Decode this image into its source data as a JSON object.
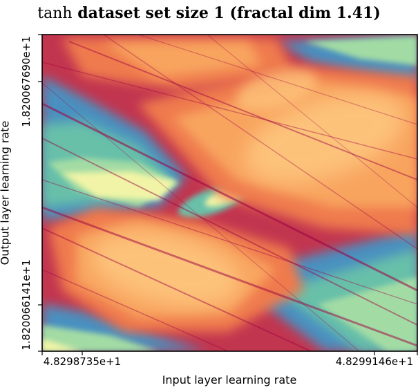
{
  "chart_data": {
    "type": "heatmap",
    "title_fn": "tanh",
    "title_rest": " dataset set size 1 (fractal dim 1.41)",
    "xlabel": "Input layer learning rate",
    "ylabel": "Output layer learning rate",
    "x_ticks": [
      "4.8298735e+1",
      "4.8299146e+1"
    ],
    "y_ticks": [
      "1.820067690e+1",
      "1.820066141e+1"
    ],
    "colormap": "Spectral",
    "colormap_stops": [
      "#9e0142",
      "#d53e4f",
      "#f46d43",
      "#fdae61",
      "#fee08b",
      "#e6f598",
      "#abdda4",
      "#66c2a5",
      "#3288bd"
    ],
    "axes_color": "#000000",
    "regions": {
      "hot_core": "#fdc27a",
      "warm": "#f8a45e",
      "orange": "#ef7a4d",
      "crimson": "#c2354f",
      "pale": "#f1f4a6",
      "mint": "#a3dba4",
      "teal": "#68c0a9",
      "blue": "#4a90c0"
    }
  }
}
